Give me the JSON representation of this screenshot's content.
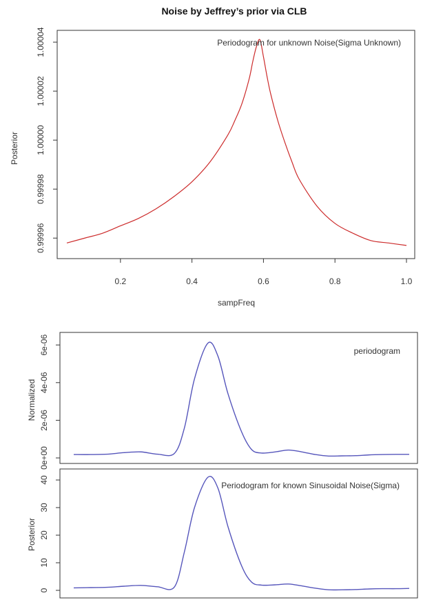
{
  "chart_data": [
    {
      "type": "line",
      "title": "Noise by Jeffrey’s prior via CLB",
      "xlabel": "sampFreq",
      "ylabel": "Posterior",
      "annotation": "Periodogram for unknown Noise(Sigma Unknown)",
      "xlim": [
        0.05,
        1.0
      ],
      "ylim": [
        0.999955,
        1.000042
      ],
      "x_ticks": [
        0.2,
        0.4,
        0.6,
        0.8,
        1.0
      ],
      "x_tick_labels": [
        "0.2",
        "0.4",
        "0.6",
        "0.8",
        "1.0"
      ],
      "y_ticks": [
        0.99996,
        0.99998,
        1.0,
        1.00002,
        1.00004
      ],
      "y_tick_labels": [
        "0.99996",
        "0.99998",
        "1.00000",
        "1.00002",
        "1.00004"
      ],
      "grid": false,
      "color": "#cc2a2a",
      "series": [
        {
          "x": [
            0.05,
            0.1,
            0.15,
            0.2,
            0.25,
            0.3,
            0.35,
            0.4,
            0.45,
            0.5,
            0.52,
            0.54,
            0.56,
            0.57,
            0.58,
            0.59,
            0.6,
            0.61,
            0.62,
            0.64,
            0.66,
            0.68,
            0.7,
            0.75,
            0.8,
            0.85,
            0.9,
            0.95,
            1.0
          ],
          "values": [
            0.999958,
            0.99996,
            0.999962,
            0.999965,
            0.999968,
            0.999972,
            0.999977,
            0.999983,
            0.999991,
            1.000002,
            1.000008,
            1.000015,
            1.000025,
            1.000032,
            1.000038,
            1.000041,
            1.000034,
            1.000026,
            1.000019,
            1.000008,
            0.999999,
            0.999991,
            0.999984,
            0.999973,
            0.999966,
            0.999962,
            0.999959,
            0.999958,
            0.999957
          ]
        }
      ]
    },
    {
      "type": "line",
      "title": "",
      "xlabel": "",
      "ylabel": "Normalized",
      "annotation": "periodogram",
      "xlim": [
        0,
        1
      ],
      "ylim": [
        0,
        6.3e-06
      ],
      "y_ticks": [
        0,
        2e-06,
        4e-06,
        6e-06
      ],
      "y_tick_labels": [
        "0e+00",
        "2e-06",
        "4e-06",
        "6e-06"
      ],
      "grid": false,
      "color": "#5555bb",
      "series": [
        {
          "x": [
            0,
            0.05,
            0.1,
            0.15,
            0.2,
            0.25,
            0.3,
            0.33,
            0.36,
            0.4,
            0.43,
            0.46,
            0.5,
            0.53,
            0.56,
            0.6,
            0.64,
            0.68,
            0.72,
            0.76,
            0.8,
            0.84,
            0.88,
            0.92,
            0.96,
            1.0
          ],
          "values": [
            1.8e-07,
            1.8e-07,
            2e-07,
            2.8e-07,
            3.2e-07,
            2e-07,
            2.4e-07,
            1.6e-06,
            4.2e-06,
            6.1e-06,
            5.4e-06,
            3.4e-06,
            1.4e-06,
            4.5e-07,
            2.6e-07,
            3.2e-07,
            4.2e-07,
            3.2e-07,
            1.8e-07,
            1e-07,
            1.1e-07,
            1.2e-07,
            1.6e-07,
            1.8e-07,
            1.9e-07,
            1.9e-07
          ]
        }
      ]
    },
    {
      "type": "line",
      "title": "",
      "xlabel": "",
      "ylabel": "Posterior",
      "annotation": "Periodogram for known Sinusoidal Noise(Sigma)",
      "xlim": [
        0,
        1
      ],
      "ylim": [
        -2,
        42
      ],
      "y_ticks": [
        0,
        10,
        20,
        30,
        40
      ],
      "y_tick_labels": [
        "0",
        "10",
        "20",
        "30",
        "40"
      ],
      "grid": false,
      "color": "#5555bb",
      "series": [
        {
          "x": [
            0,
            0.05,
            0.1,
            0.15,
            0.2,
            0.25,
            0.3,
            0.33,
            0.36,
            0.4,
            0.43,
            0.46,
            0.5,
            0.53,
            0.56,
            0.6,
            0.64,
            0.68,
            0.72,
            0.76,
            0.8,
            0.84,
            0.88,
            0.92,
            0.96,
            1.0
          ],
          "values": [
            0.9,
            1.0,
            1.1,
            1.5,
            1.8,
            1.3,
            1.2,
            14,
            30,
            41,
            37,
            23,
            9,
            3,
            1.9,
            2.0,
            2.3,
            1.6,
            0.8,
            0.2,
            0.2,
            0.3,
            0.5,
            0.6,
            0.6,
            0.7
          ]
        }
      ]
    }
  ]
}
